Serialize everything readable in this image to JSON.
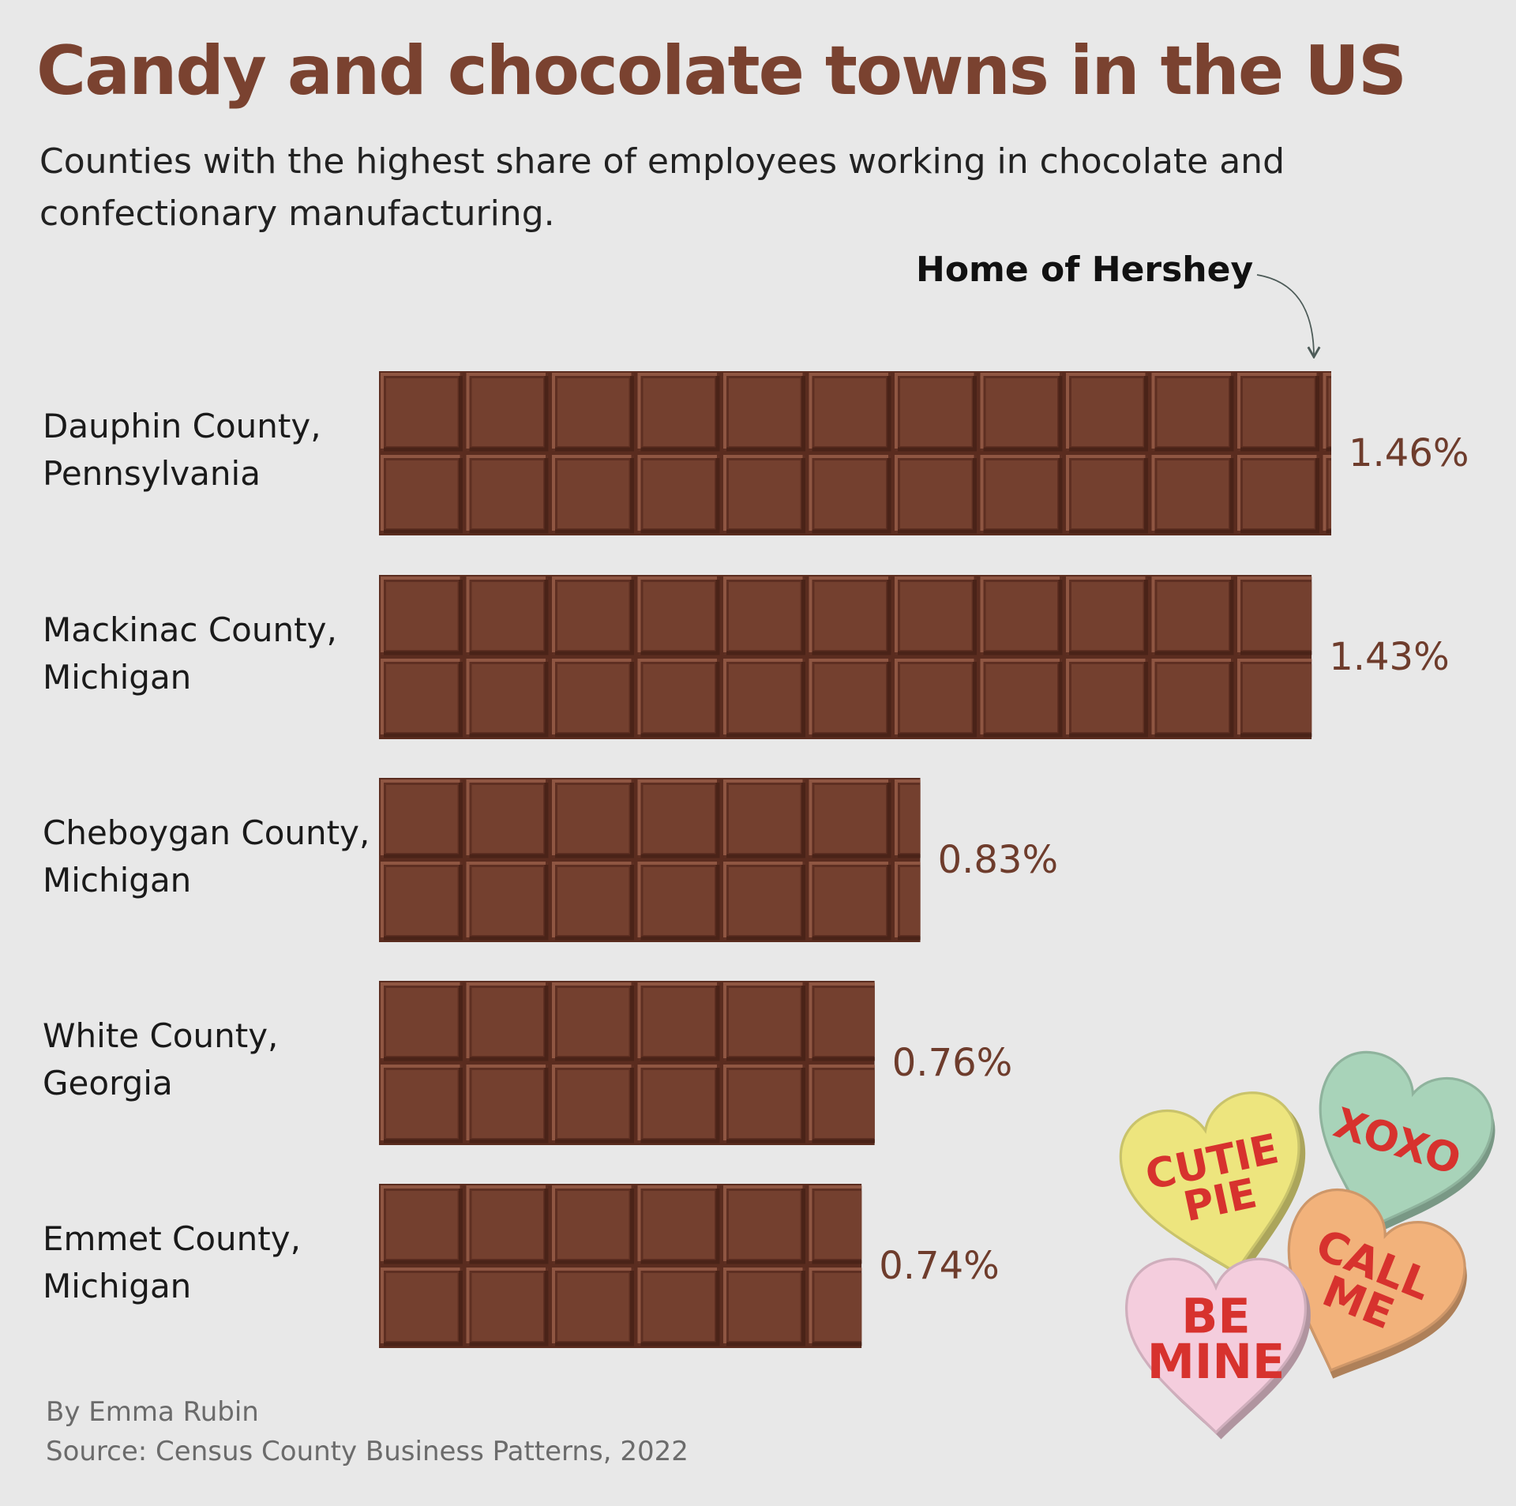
{
  "title": "Candy and chocolate towns in the US",
  "subtitle": "Counties with the highest share of employees working in chocolate and confectionary manufacturing.",
  "annotation": "Home of Hershey",
  "byline": "By Emma Rubin",
  "source": "Source: Census County Business Patterns, 2022",
  "colors": {
    "title": "#7a4230",
    "chocolate": "#74402f",
    "value_label": "#6e3c2c",
    "background": "#e8e8e8"
  },
  "hearts": [
    {
      "text_lines": [
        "XOXO"
      ],
      "color": "#a8d3b9",
      "icon": "candy-heart-icon"
    },
    {
      "text_lines": [
        "CUTIE",
        "PIE"
      ],
      "color": "#ede57e",
      "icon": "candy-heart-icon"
    },
    {
      "text_lines": [
        "CALL",
        "ME"
      ],
      "color": "#f2b27b",
      "icon": "candy-heart-icon"
    },
    {
      "text_lines": [
        "BE",
        "MINE"
      ],
      "color": "#f4cddd",
      "icon": "candy-heart-icon"
    }
  ],
  "chart_data": {
    "type": "bar",
    "orientation": "horizontal",
    "categories": [
      [
        "Dauphin County,",
        "Pennsylvania"
      ],
      [
        "Mackinac County,",
        "Michigan"
      ],
      [
        "Cheboygan County,",
        "Michigan"
      ],
      [
        "White County,",
        "Georgia"
      ],
      [
        "Emmet County,",
        "Michigan"
      ]
    ],
    "values": [
      1.46,
      1.43,
      0.83,
      0.76,
      0.74
    ],
    "value_labels": [
      "1.46%",
      "1.43%",
      "0.83%",
      "0.76%",
      "0.74%"
    ],
    "unit": "%",
    "xlim": [
      0,
      1.46
    ],
    "grid": false,
    "legend": "none",
    "annotation": {
      "text": "Home of Hershey",
      "target_category": "Dauphin County, Pennsylvania"
    }
  }
}
